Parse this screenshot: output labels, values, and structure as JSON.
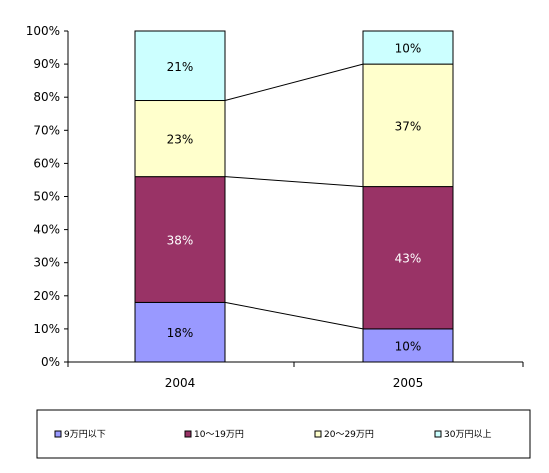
{
  "chart_data": {
    "type": "bar",
    "stacked": true,
    "percent_stacked": true,
    "categories": [
      "2004",
      "2005"
    ],
    "series": [
      {
        "name": "9万円以下",
        "values": [
          18,
          10
        ],
        "color": "#9999FF",
        "label_color": "#000000"
      },
      {
        "name": "10～19万円",
        "values": [
          38,
          43
        ],
        "color": "#993366",
        "label_color": "#FFFFFF"
      },
      {
        "name": "20～29万円",
        "values": [
          23,
          37
        ],
        "color": "#FFFFCC",
        "label_color": "#000000"
      },
      {
        "name": "30万円以上",
        "values": [
          21,
          10
        ],
        "color": "#CCFFFF",
        "label_color": "#000000"
      }
    ],
    "data_labels": [
      [
        "18%",
        "10%"
      ],
      [
        "38%",
        "43%"
      ],
      [
        "23%",
        "37%"
      ],
      [
        "21%",
        "10%"
      ]
    ],
    "y_ticks": [
      "0%",
      "10%",
      "20%",
      "30%",
      "40%",
      "50%",
      "60%",
      "70%",
      "80%",
      "90%",
      "100%"
    ],
    "ylim": [
      0,
      100
    ],
    "grid": false,
    "series_lines": true,
    "legend_position": "bottom",
    "title": "",
    "xlabel": "",
    "ylabel": ""
  }
}
